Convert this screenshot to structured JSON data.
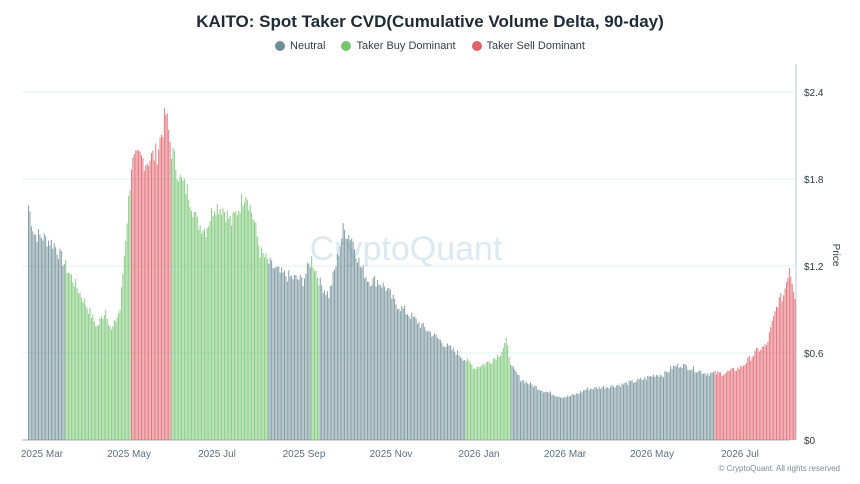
{
  "chart_data": {
    "type": "bar",
    "title": "KAITO: Spot Taker CVD(Cumulative Volume Delta, 90-day)",
    "legend": [
      {
        "name": "Neutral",
        "color": "#6f8d96"
      },
      {
        "name": "Taker Buy Dominant",
        "color": "#74c470"
      },
      {
        "name": "Taker Sell Dominant",
        "color": "#e0626a"
      }
    ],
    "x_ticks": [
      "2025 Mar",
      "2025 May",
      "2025 Jul",
      "2025 Sep",
      "2025 Nov",
      "2026 Jan",
      "2026 Mar",
      "2026 May",
      "2026 Jul"
    ],
    "y_ticks": [
      "$0",
      "$0.6",
      "$1.2",
      "$1.8",
      "$2.4"
    ],
    "ylabel": "Price",
    "ylim": [
      0,
      2.4
    ],
    "watermark": "CryptoQuant",
    "credit": "© CryptoQuant. All rights reserved",
    "x_start": "2025-02-20",
    "x_end": "2026-07-31",
    "grid": true,
    "series": [
      {
        "name": "Neutral",
        "points": [
          [
            0,
            1.62,
            0
          ],
          [
            4,
            1.42,
            0
          ],
          [
            10,
            1.4,
            0
          ],
          [
            18,
            1.35,
            0
          ],
          [
            26,
            1.2,
            1
          ],
          [
            34,
            1.05,
            1
          ],
          [
            42,
            0.9,
            1
          ],
          [
            48,
            0.78,
            1
          ],
          [
            54,
            0.9,
            1
          ],
          [
            58,
            0.75,
            1
          ],
          [
            64,
            0.9,
            1
          ],
          [
            72,
            1.9,
            2
          ],
          [
            78,
            1.95,
            2
          ],
          [
            82,
            1.92,
            2
          ],
          [
            90,
            1.98,
            2
          ],
          [
            96,
            2.25,
            2
          ],
          [
            100,
            2.0,
            1
          ],
          [
            106,
            1.8,
            1
          ],
          [
            112,
            1.7,
            1
          ],
          [
            118,
            1.5,
            1
          ],
          [
            124,
            1.45,
            1
          ],
          [
            130,
            1.62,
            1
          ],
          [
            136,
            1.6,
            1
          ],
          [
            142,
            1.5,
            1
          ],
          [
            148,
            1.62,
            1
          ],
          [
            152,
            1.72,
            1
          ],
          [
            158,
            1.5,
            1
          ],
          [
            162,
            1.3,
            1
          ],
          [
            168,
            1.22,
            0
          ],
          [
            176,
            1.15,
            0
          ],
          [
            184,
            1.12,
            0
          ],
          [
            192,
            1.1,
            0
          ],
          [
            198,
            1.25,
            1
          ],
          [
            204,
            1.08,
            0
          ],
          [
            210,
            1.0,
            0
          ],
          [
            216,
            1.25,
            0
          ],
          [
            220,
            1.45,
            0
          ],
          [
            226,
            1.4,
            0
          ],
          [
            232,
            1.2,
            0
          ],
          [
            238,
            1.1,
            0
          ],
          [
            244,
            1.1,
            0
          ],
          [
            250,
            1.05,
            0
          ],
          [
            256,
            0.95,
            0
          ],
          [
            262,
            0.9,
            0
          ],
          [
            268,
            0.85,
            0
          ],
          [
            276,
            0.78,
            0
          ],
          [
            284,
            0.72,
            0
          ],
          [
            292,
            0.65,
            0
          ],
          [
            300,
            0.6,
            0
          ],
          [
            306,
            0.55,
            1
          ],
          [
            312,
            0.5,
            1
          ],
          [
            318,
            0.52,
            1
          ],
          [
            324,
            0.55,
            1
          ],
          [
            330,
            0.6,
            1
          ],
          [
            334,
            0.68,
            1
          ],
          [
            338,
            0.5,
            0
          ],
          [
            344,
            0.42,
            0
          ],
          [
            352,
            0.38,
            0
          ],
          [
            360,
            0.34,
            0
          ],
          [
            366,
            0.32,
            0
          ],
          [
            372,
            0.3,
            0
          ],
          [
            378,
            0.3,
            0
          ],
          [
            384,
            0.32,
            0
          ],
          [
            390,
            0.35,
            0
          ],
          [
            398,
            0.36,
            0
          ],
          [
            406,
            0.37,
            0
          ],
          [
            414,
            0.38,
            0
          ],
          [
            422,
            0.4,
            0
          ],
          [
            430,
            0.42,
            0
          ],
          [
            438,
            0.45,
            0
          ],
          [
            444,
            0.45,
            0
          ],
          [
            450,
            0.5,
            0
          ],
          [
            456,
            0.52,
            0
          ],
          [
            462,
            0.5,
            0
          ],
          [
            468,
            0.48,
            0
          ],
          [
            474,
            0.46,
            0
          ],
          [
            480,
            0.46,
            2
          ],
          [
            486,
            0.46,
            2
          ],
          [
            492,
            0.48,
            2
          ],
          [
            498,
            0.5,
            2
          ],
          [
            504,
            0.56,
            2
          ],
          [
            510,
            0.62,
            2
          ],
          [
            516,
            0.65,
            2
          ],
          [
            520,
            0.8,
            2
          ],
          [
            524,
            0.95,
            2
          ],
          [
            528,
            1.0,
            2
          ],
          [
            532,
            1.2,
            2
          ],
          [
            536,
            1.0,
            2
          ]
        ]
      }
    ]
  }
}
